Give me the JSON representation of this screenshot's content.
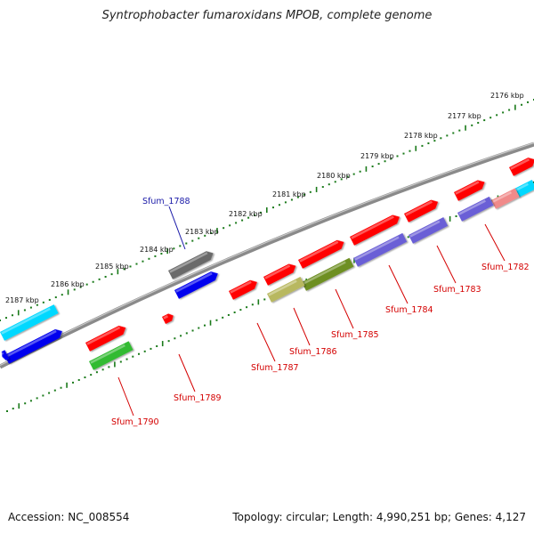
{
  "title": "Syntrophobacter fumaroxidans MPOB, complete genome",
  "accession": "Accession: NC_008554",
  "stats": "Topology: circular; Length: 4,990,251 bp; Genes: 4,127",
  "colors": {
    "red": "#ff0000",
    "blue": "#0000ee",
    "cyan": "#00d8ff",
    "purple": "#6a5fd6",
    "green": "#33bb33",
    "olive": "#6e8f20",
    "khaki": "#b8b860",
    "gray": "#6a6a6a",
    "pink": "#f08a8a",
    "tick_green": "#1a7a1a",
    "backbone": "#8a8a8a",
    "label_red": "#d40000",
    "label_blue": "#1a1aa8"
  },
  "kbp_labels": [
    "2176 kbp",
    "2177 kbp",
    "2178 kbp",
    "2179 kbp",
    "2180 kbp",
    "2181 kbp",
    "2182 kbp",
    "2183 kbp",
    "2184 kbp",
    "2185 kbp",
    "2186 kbp",
    "2187 kbp"
  ],
  "gene_labels": [
    "Sfum_1782",
    "Sfum_1783",
    "Sfum_1784",
    "Sfum_1785",
    "Sfum_1786",
    "Sfum_1787",
    "Sfum_1788",
    "Sfum_1789",
    "Sfum_1790"
  ],
  "features": [
    {
      "color": "red",
      "kind": "arrow"
    },
    {
      "color": "red",
      "kind": "arrow"
    },
    {
      "color": "red",
      "kind": "arrow"
    },
    {
      "color": "red",
      "kind": "arrow"
    },
    {
      "color": "red",
      "kind": "arrow"
    },
    {
      "color": "red",
      "kind": "arrow"
    },
    {
      "color": "red",
      "kind": "arrow"
    },
    {
      "color": "red",
      "kind": "arrow"
    },
    {
      "color": "red",
      "kind": "arrow"
    },
    {
      "color": "cyan",
      "kind": "bar"
    },
    {
      "color": "pink",
      "kind": "bar"
    },
    {
      "color": "purple",
      "kind": "bar"
    },
    {
      "color": "purple",
      "kind": "bar"
    },
    {
      "color": "purple",
      "kind": "bar"
    },
    {
      "color": "olive",
      "kind": "bar"
    },
    {
      "color": "khaki",
      "kind": "bar"
    },
    {
      "color": "green",
      "kind": "bar"
    },
    {
      "color": "gray",
      "kind": "arrow"
    },
    {
      "color": "blue",
      "kind": "arrow"
    },
    {
      "color": "cyan",
      "kind": "bar"
    },
    {
      "color": "blue",
      "kind": "arrow"
    },
    {
      "color": "blue",
      "kind": "arrow"
    }
  ]
}
